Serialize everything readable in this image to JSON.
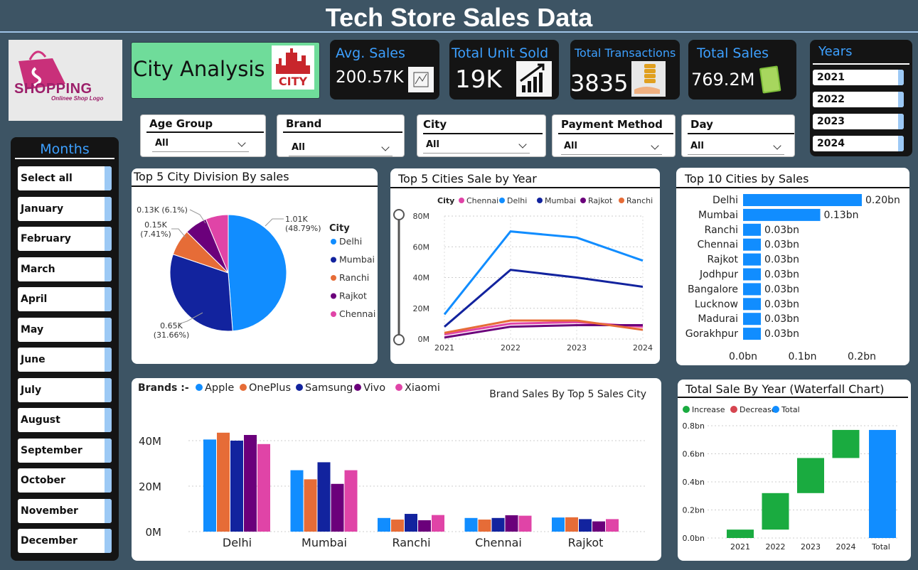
{
  "header": {
    "title": "Tech Store Sales Data"
  },
  "logo": {
    "text": "SHOPPING",
    "subtitle": "Onlinee Shop Logo"
  },
  "city_card": {
    "label": "City Analysis",
    "logo_text": "CITY"
  },
  "kpis": [
    {
      "label": "Avg. Sales",
      "value": "200.57K",
      "icon": "chart-icon"
    },
    {
      "label": "Total Unit Sold",
      "value": "19K",
      "icon": "growth-chart-icon"
    },
    {
      "label": "Total Transactions",
      "value": "3835",
      "icon": "coins-hand-icon"
    },
    {
      "label": "Total Sales",
      "value": "769.2M",
      "icon": "money-stack-icon"
    }
  ],
  "years": {
    "title": "Years",
    "items": [
      "2021",
      "2022",
      "2023",
      "2024"
    ]
  },
  "filters": [
    {
      "label": "Age Group",
      "value": "All"
    },
    {
      "label": "Brand",
      "value": "All"
    },
    {
      "label": "City",
      "value": "All"
    },
    {
      "label": "Payment Method",
      "value": "All"
    },
    {
      "label": "Day",
      "value": "All"
    }
  ],
  "months": {
    "title": "Months",
    "items": [
      "Select all",
      "January",
      "February",
      "March",
      "April",
      "May",
      "June",
      "July",
      "August",
      "September",
      "October",
      "November",
      "December"
    ]
  },
  "colors": {
    "delhi": "#118dff",
    "mumbai": "#12239e",
    "ranchi": "#e66c37",
    "rajkot": "#6b007b",
    "chennai": "#e044a7",
    "increase": "#1aab40",
    "decrease": "#d64550",
    "total": "#118dff"
  },
  "chart_data": [
    {
      "type": "pie",
      "title": "Top 5 City Division By sales",
      "legend_title": "City",
      "slices": [
        {
          "name": "Delhi",
          "value": 1.01,
          "label": "1.01K",
          "pct": "(48.79%)"
        },
        {
          "name": "Mumbai",
          "value": 0.65,
          "label": "0.65K",
          "pct": "(31.66%)"
        },
        {
          "name": "Ranchi",
          "value": 0.15,
          "label": "0.15K",
          "pct": "(7.41%)"
        },
        {
          "name": "Rajkot",
          "value": 0.13,
          "label": "0.13K",
          "pct": "(6.1%)"
        },
        {
          "name": "Chennai",
          "value": 0.13,
          "label": "",
          "pct": ""
        }
      ]
    },
    {
      "type": "line",
      "title": "Top 5 Cities Sale by Year",
      "legend_title": "City",
      "x": [
        "2021",
        "2022",
        "2023",
        "2024"
      ],
      "yticks": [
        "0M",
        "20M",
        "40M",
        "60M",
        "80M"
      ],
      "ylim": [
        0,
        80
      ],
      "series": [
        {
          "name": "Chennai",
          "values": [
            3,
            10,
            11,
            8
          ]
        },
        {
          "name": "Delhi",
          "values": [
            16,
            70,
            66,
            51
          ]
        },
        {
          "name": "Mumbai",
          "values": [
            8,
            45,
            40,
            34
          ]
        },
        {
          "name": "Rajkot",
          "values": [
            1,
            8,
            9,
            9
          ]
        },
        {
          "name": "Ranchi",
          "values": [
            4,
            12,
            12,
            6
          ]
        }
      ]
    },
    {
      "type": "bar",
      "title": "Top 10 Cities by Sales",
      "categories": [
        "Delhi",
        "Mumbai",
        "Ranchi",
        "Chennai",
        "Rajkot",
        "Jodhpur",
        "Bangalore",
        "Lucknow",
        "Madurai",
        "Gorakhpur"
      ],
      "values": [
        0.2,
        0.13,
        0.03,
        0.03,
        0.03,
        0.03,
        0.03,
        0.03,
        0.03,
        0.03
      ],
      "labels": [
        "0.20bn",
        "0.13bn",
        "0.03bn",
        "0.03bn",
        "0.03bn",
        "0.03bn",
        "0.03bn",
        "0.03bn",
        "0.03bn",
        "0.03bn"
      ],
      "xticks": [
        "0.0bn",
        "0.1bn",
        "0.2bn"
      ],
      "xlim": [
        0,
        0.2
      ]
    },
    {
      "type": "bar",
      "title": "Brand Sales By Top 5 Sales City",
      "legend_title": "Brands :-",
      "categories": [
        "Delhi",
        "Mumbai",
        "Ranchi",
        "Chennai",
        "Rajkot"
      ],
      "yticks": [
        "0M",
        "20M",
        "40M"
      ],
      "ylim": [
        0,
        45
      ],
      "series": [
        {
          "name": "Apple",
          "values": [
            40.5,
            27,
            6,
            6,
            6.2
          ]
        },
        {
          "name": "OnePlus",
          "values": [
            43.5,
            23,
            5.3,
            5.3,
            6.3
          ]
        },
        {
          "name": "Samsung",
          "values": [
            40,
            30.5,
            7.8,
            6,
            5.5
          ]
        },
        {
          "name": "Vivo",
          "values": [
            42.5,
            21,
            5,
            7.2,
            4.5
          ]
        },
        {
          "name": "Xiaomi",
          "values": [
            38.5,
            27,
            7.3,
            7,
            5.5
          ]
        }
      ]
    },
    {
      "type": "bar",
      "title": "Total Sale By Year (Waterfall Chart)",
      "legend": [
        "Increase",
        "Decrease",
        "Total"
      ],
      "categories": [
        "2021",
        "2022",
        "2023",
        "2024",
        "Total"
      ],
      "steps": [
        0.06,
        0.26,
        0.25,
        0.2
      ],
      "total": 0.77,
      "yticks": [
        "0.0bn",
        "0.2bn",
        "0.4bn",
        "0.6bn",
        "0.8bn"
      ],
      "ylim": [
        0,
        0.8
      ]
    }
  ]
}
